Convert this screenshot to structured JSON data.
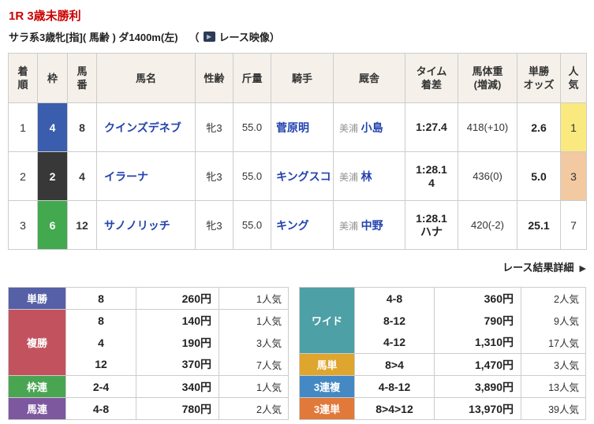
{
  "header": {
    "race_title": "1R 3歳未勝利",
    "race_conditions": "サラ系3歳牝[指]( 馬齢 ) ダ1400m(左)",
    "video_open": "（",
    "video_label": "レース映像",
    "video_close": "）",
    "title_color": "#cc0000"
  },
  "results": {
    "columns": [
      "着\n順",
      "枠",
      "馬\n番",
      "馬名",
      "性齢",
      "斤量",
      "騎手",
      "厩舎",
      "タイム\n着差",
      "馬体重\n(増減)",
      "単勝\nオッズ",
      "人\n気"
    ],
    "rows": [
      {
        "position": "1",
        "frame": "4",
        "frame_color": "#3a5dad",
        "horse_no": "8",
        "horse_name": "クインズデネブ",
        "sex_age": "牝3",
        "weight": "55.0",
        "jockey": "菅原明",
        "stable_area": "美浦",
        "trainer": "小島",
        "time": "1:27.4",
        "margin": "",
        "weight_change": "418(+10)",
        "odds": "2.6",
        "favorite": "1",
        "favorite_bg": "#fae97e"
      },
      {
        "position": "2",
        "frame": "2",
        "frame_color": "#383838",
        "horse_no": "4",
        "horse_name": "イラーナ",
        "sex_age": "牝3",
        "weight": "55.0",
        "jockey": "キングスコ",
        "stable_area": "美浦",
        "trainer": "林",
        "time": "1:28.1",
        "margin": "4",
        "weight_change": "436(0)",
        "odds": "5.0",
        "favorite": "3",
        "favorite_bg": "#f2c9a0"
      },
      {
        "position": "3",
        "frame": "6",
        "frame_color": "#42a94f",
        "horse_no": "12",
        "horse_name": "サノノリッチ",
        "sex_age": "牝3",
        "weight": "55.0",
        "jockey": "キング",
        "stable_area": "美浦",
        "trainer": "中野",
        "time": "1:28.1",
        "margin": "ハナ",
        "weight_change": "420(-2)",
        "odds": "25.1",
        "favorite": "7",
        "favorite_bg": ""
      }
    ]
  },
  "detail_link": {
    "label": "レース結果詳細",
    "arrow": "▶"
  },
  "payouts": {
    "left": [
      {
        "label": "単勝",
        "color": "#5560a6",
        "rows": [
          {
            "sel": "8",
            "amount": "260円",
            "favorite": "1人気"
          }
        ]
      },
      {
        "label": "複勝",
        "color": "#c3525f",
        "rows": [
          {
            "sel": "8",
            "amount": "140円",
            "favorite": "1人気"
          },
          {
            "sel": "4",
            "amount": "190円",
            "favorite": "3人気"
          },
          {
            "sel": "12",
            "amount": "370円",
            "favorite": "7人気"
          }
        ]
      },
      {
        "label": "枠連",
        "color": "#4aa553",
        "rows": [
          {
            "sel": "2-4",
            "amount": "340円",
            "favorite": "1人気"
          }
        ]
      },
      {
        "label": "馬連",
        "color": "#7d589f",
        "rows": [
          {
            "sel": "4-8",
            "amount": "780円",
            "favorite": "2人気"
          }
        ]
      }
    ],
    "right": [
      {
        "label": "ワイド",
        "color": "#4da0a6",
        "rows": [
          {
            "sel": "4-8",
            "amount": "360円",
            "favorite": "2人気"
          },
          {
            "sel": "8-12",
            "amount": "790円",
            "favorite": "9人気"
          },
          {
            "sel": "4-12",
            "amount": "1,310円",
            "favorite": "17人気"
          }
        ]
      },
      {
        "label": "馬単",
        "color": "#dea62e",
        "rows": [
          {
            "sel": "8>4",
            "amount": "1,470円",
            "favorite": "3人気"
          }
        ]
      },
      {
        "label": "3連複",
        "color": "#4489c4",
        "rows": [
          {
            "sel": "4-8-12",
            "amount": "3,890円",
            "favorite": "13人気"
          }
        ]
      },
      {
        "label": "3連単",
        "color": "#e0793a",
        "rows": [
          {
            "sel": "8>4>12",
            "amount": "13,970円",
            "favorite": "39人気"
          }
        ]
      }
    ]
  }
}
